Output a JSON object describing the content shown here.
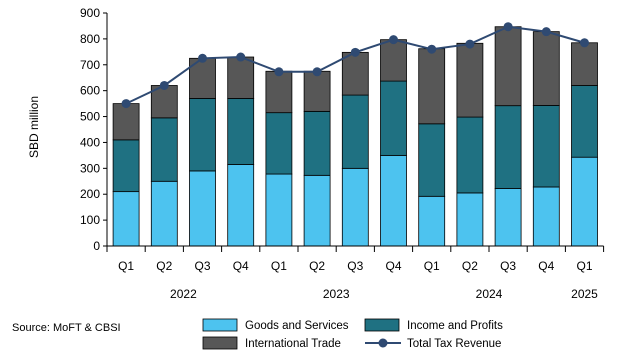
{
  "chart_data": {
    "type": "bar",
    "ylabel": "SBD million",
    "ylim": [
      0,
      900
    ],
    "yticks": [
      0,
      100,
      200,
      300,
      400,
      500,
      600,
      700,
      800,
      900
    ],
    "categories": [
      "Q1",
      "Q2",
      "Q3",
      "Q4",
      "Q1",
      "Q2",
      "Q3",
      "Q4",
      "Q1",
      "Q2",
      "Q3",
      "Q4",
      "Q1"
    ],
    "years": [
      {
        "label": "2022",
        "start": 0,
        "end": 3
      },
      {
        "label": "2023",
        "start": 4,
        "end": 7
      },
      {
        "label": "2024",
        "start": 8,
        "end": 11
      },
      {
        "label": "2025",
        "start": 12,
        "end": 12
      }
    ],
    "series": [
      {
        "name": "Goods and Services",
        "kind": "bar",
        "color": "#4DC3EF",
        "values": [
          210,
          250,
          290,
          315,
          278,
          273,
          300,
          350,
          192,
          205,
          222,
          228,
          343
        ]
      },
      {
        "name": "Income and Profits",
        "kind": "bar",
        "color": "#1F7182",
        "values": [
          200,
          245,
          280,
          255,
          237,
          247,
          283,
          287,
          280,
          293,
          320,
          315,
          277
        ]
      },
      {
        "name": "International Trade",
        "kind": "bar",
        "color": "#575757",
        "values": [
          140,
          125,
          155,
          160,
          160,
          155,
          165,
          160,
          290,
          285,
          305,
          285,
          165
        ]
      },
      {
        "name": "Total Tax Revenue",
        "kind": "line",
        "color": "#2F4A72",
        "values": [
          550,
          620,
          725,
          730,
          673,
          673,
          748,
          797,
          760,
          780,
          847,
          828,
          785
        ]
      }
    ],
    "grid": false,
    "legend_position": "bottom-right"
  },
  "source_note": "Source: MoFT & CBSI"
}
